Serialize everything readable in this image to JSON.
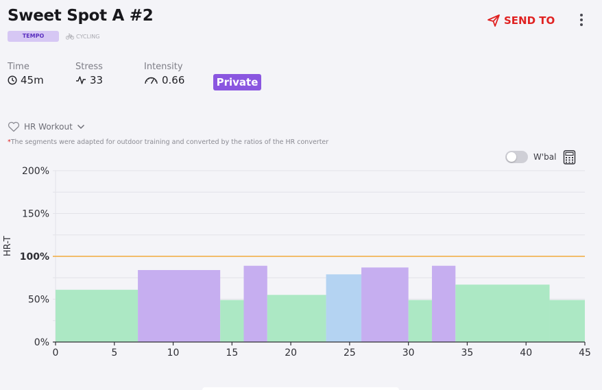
{
  "header": {
    "title": "Sweet Spot A #2",
    "category_badge": "TEMPO",
    "sport": "CYCLING",
    "send_to_label": "SEND TO"
  },
  "stats": [
    {
      "label": "Time",
      "value": "45m",
      "icon": "clock-icon"
    },
    {
      "label": "Stress",
      "value": "33",
      "icon": "pulse-icon"
    },
    {
      "label": "Intensity",
      "value": "0.66",
      "icon": "gauge-icon"
    }
  ],
  "visibility_badge": "Private",
  "workout_type": {
    "label": "HR Workout",
    "icon": "heart-icon"
  },
  "note": {
    "asterisk": "*",
    "text": "The segments were adapted for outdoor training and converted by the ratios of the HR converter"
  },
  "wbal_toggle": {
    "label": "W'bal",
    "on": false
  },
  "colors": {
    "accent_red": "#e02222",
    "tempo_badge_bg": "#d6c7f4",
    "private_bg": "#8a56e0",
    "threshold_line": "#f2a93b",
    "zone_green": "#ace8c4",
    "zone_purple": "#c6aef0",
    "zone_blue": "#b4d3f2"
  },
  "chart_data": {
    "type": "bar",
    "ylabel": "HR-T",
    "xlim": [
      0,
      45
    ],
    "ylim": [
      0,
      200
    ],
    "x_ticks": [
      "0",
      "5",
      "10",
      "15",
      "20",
      "25",
      "30",
      "35",
      "40",
      "45"
    ],
    "y_ticks": [
      "0%",
      "50%",
      "100%",
      "150%",
      "200%"
    ],
    "threshold": {
      "value": 100,
      "label": "100%"
    },
    "segments": [
      {
        "start": 0,
        "end": 7,
        "value": 61,
        "zone": "green"
      },
      {
        "start": 7,
        "end": 14,
        "value": 84,
        "zone": "purple"
      },
      {
        "start": 14,
        "end": 16,
        "value": 49,
        "zone": "green"
      },
      {
        "start": 16,
        "end": 18,
        "value": 89,
        "zone": "purple"
      },
      {
        "start": 18,
        "end": 23,
        "value": 55,
        "zone": "green"
      },
      {
        "start": 23,
        "end": 26,
        "value": 79,
        "zone": "blue"
      },
      {
        "start": 26,
        "end": 30,
        "value": 87,
        "zone": "purple"
      },
      {
        "start": 30,
        "end": 32,
        "value": 49,
        "zone": "green"
      },
      {
        "start": 32,
        "end": 34,
        "value": 89,
        "zone": "purple"
      },
      {
        "start": 34,
        "end": 42,
        "value": 67,
        "zone": "green"
      },
      {
        "start": 42,
        "end": 45,
        "value": 49,
        "zone": "green"
      }
    ]
  }
}
